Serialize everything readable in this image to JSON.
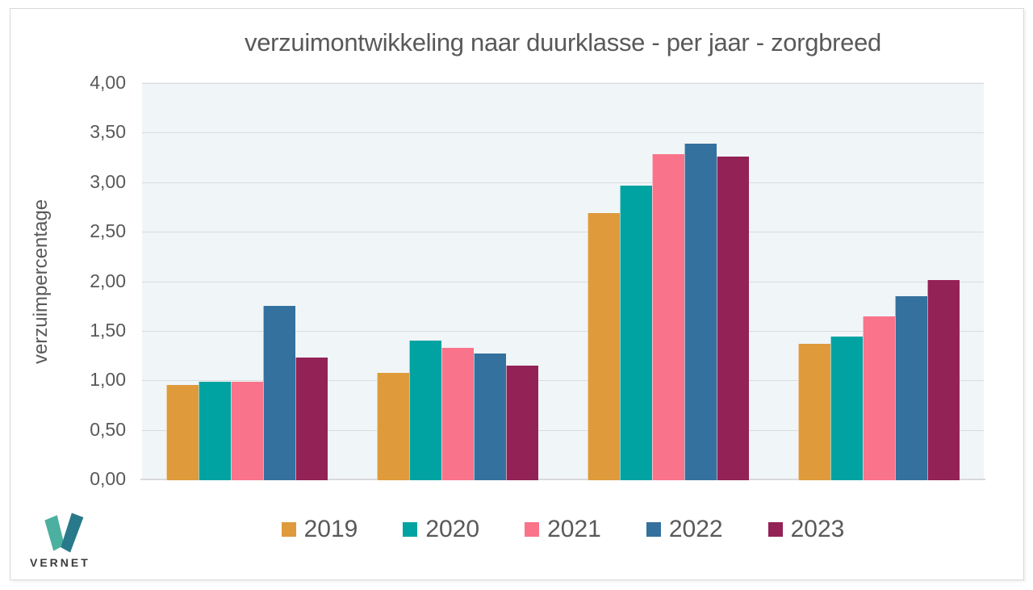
{
  "page": {
    "background": "#ffffff",
    "panel_border": "#d9d9d9"
  },
  "chart_data": {
    "type": "bar",
    "title": "verzuimontwikkeling naar duurklasse - per jaar - zorgbreed",
    "xlabel": "",
    "ylabel": "verzuimpercentage",
    "ylim": [
      0,
      4
    ],
    "ytick_step": 0.5,
    "ytick_labels": [
      "0,00",
      "0,50",
      "1,00",
      "1,50",
      "2,00",
      "2,50",
      "3,00",
      "3,50",
      "4,00"
    ],
    "categories": [
      "",
      "",
      "",
      ""
    ],
    "series": [
      {
        "name": "2019",
        "color": "#df9a3b",
        "values": [
          0.96,
          1.08,
          2.7,
          1.38
        ]
      },
      {
        "name": "2020",
        "color": "#00a3a1",
        "values": [
          0.99,
          1.41,
          2.97,
          1.45
        ]
      },
      {
        "name": "2021",
        "color": "#f9748a",
        "values": [
          0.99,
          1.34,
          3.29,
          1.65
        ]
      },
      {
        "name": "2022",
        "color": "#34719f",
        "values": [
          1.76,
          1.28,
          3.4,
          1.86
        ]
      },
      {
        "name": "2023",
        "color": "#932256",
        "values": [
          1.24,
          1.16,
          3.27,
          2.02
        ]
      }
    ],
    "legend_position": "bottom",
    "grid": true,
    "plot_background": "#f0f5f8",
    "gridline_color": "#dbdbdb",
    "axis_text_color": "#595959"
  },
  "logo": {
    "label": "VERNET",
    "mark_color_left": "#4cb0a0",
    "mark_color_right": "#28798a",
    "label_color": "#3b3b3b"
  }
}
